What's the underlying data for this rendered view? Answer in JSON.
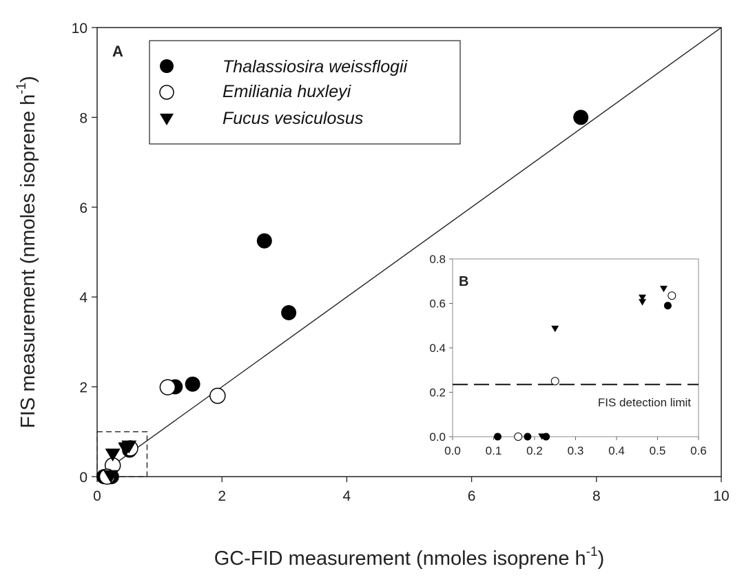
{
  "chart_data": [
    {
      "panel": "A",
      "type": "scatter",
      "title": "",
      "panel_label": "A",
      "xlabel": "GC-FID measurement (nmoles isoprene h",
      "xlabel_sup": "-1",
      "xlabel_end": ")",
      "ylabel": "FIS measurement (nmoles isoprene h",
      "ylabel_sup": "-1",
      "ylabel_end": ")",
      "xlim": [
        0,
        10
      ],
      "ylim": [
        0,
        10
      ],
      "xticks": [
        0,
        2,
        4,
        6,
        8,
        10
      ],
      "yticks": [
        0,
        2,
        4,
        6,
        8,
        10
      ],
      "reference_line": {
        "type": "1:1",
        "from": [
          0,
          0
        ],
        "to": [
          10,
          10
        ]
      },
      "inset_region": {
        "x": [
          0,
          0.8
        ],
        "y": [
          0,
          1
        ]
      },
      "legend": {
        "placement": "top-left",
        "entries": [
          {
            "marker": "filled-circle",
            "label": "Thalassiosira weissflogii"
          },
          {
            "marker": "open-circle",
            "label": "Emiliania huxleyi"
          },
          {
            "marker": "filled-triangle-down",
            "label": "Fucus vesiculosus"
          }
        ]
      },
      "series": [
        {
          "name": "Thalassiosira weissflogii",
          "marker": "filled-circle",
          "points": [
            [
              7.75,
              8.0
            ],
            [
              2.68,
              5.25
            ],
            [
              3.07,
              3.65
            ],
            [
              1.53,
              2.06
            ],
            [
              1.25,
              2.0
            ],
            [
              0.52,
              0.59
            ],
            [
              0.2,
              0.0
            ],
            [
              0.11,
              0.0
            ],
            [
              0.23,
              0.0
            ]
          ]
        },
        {
          "name": "Emiliania huxleyi",
          "marker": "open-circle",
          "points": [
            [
              1.93,
              1.8
            ],
            [
              1.13,
              1.99
            ],
            [
              0.53,
              0.63
            ],
            [
              0.25,
              0.25
            ],
            [
              0.16,
              0.0
            ]
          ]
        },
        {
          "name": "Fucus vesiculosus",
          "marker": "filled-triangle-down",
          "points": [
            [
              0.51,
              0.66
            ],
            [
              0.46,
              0.62
            ],
            [
              0.46,
              0.6
            ],
            [
              0.25,
              0.48
            ],
            [
              0.22,
              0.0
            ]
          ]
        }
      ]
    },
    {
      "panel": "B",
      "type": "scatter",
      "panel_label": "B",
      "xlim": [
        0,
        0.6
      ],
      "ylim": [
        0,
        0.8
      ],
      "xticks": [
        "0.0",
        "0.1",
        "0.2",
        "0.3",
        "0.4",
        "0.5",
        "0.6"
      ],
      "yticks": [
        "0.0",
        "0.2",
        "0.4",
        "0.6",
        "0.8"
      ],
      "detection_limit": {
        "value": 0.235,
        "label": "FIS detection limit"
      },
      "series": [
        {
          "name": "Thalassiosira weissflogii",
          "marker": "filled-circle",
          "points": [
            [
              0.525,
              0.59
            ],
            [
              0.11,
              0.0
            ],
            [
              0.183,
              0.0
            ],
            [
              0.228,
              0.0
            ]
          ]
        },
        {
          "name": "Emiliania huxleyi",
          "marker": "open-circle",
          "points": [
            [
              0.535,
              0.635
            ],
            [
              0.25,
              0.25
            ],
            [
              0.16,
              0.0
            ]
          ]
        },
        {
          "name": "Fucus vesiculosus",
          "marker": "filled-triangle-down",
          "points": [
            [
              0.515,
              0.665
            ],
            [
              0.463,
              0.625
            ],
            [
              0.463,
              0.605
            ],
            [
              0.25,
              0.485
            ],
            [
              0.218,
              0.0
            ]
          ]
        }
      ]
    }
  ]
}
